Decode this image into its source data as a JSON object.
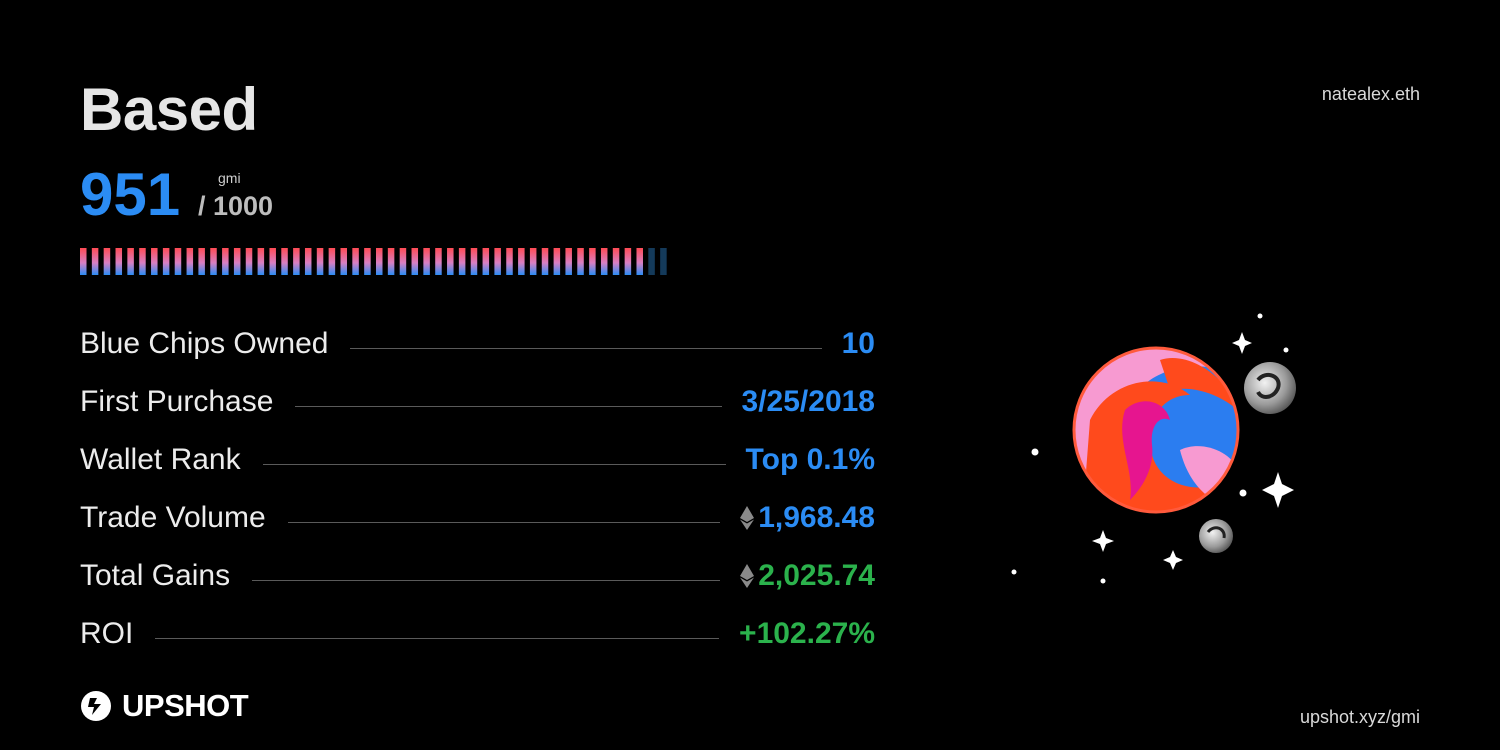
{
  "header": {
    "title": "Based",
    "username": "natealex.eth"
  },
  "score": {
    "value": "951",
    "unit": "gmi",
    "max_label": "/ 1000",
    "fraction": 0.951
  },
  "stats": [
    {
      "label": "Blue Chips Owned",
      "value": "10",
      "eth": false,
      "color": "#2b8cf4"
    },
    {
      "label": "First Purchase",
      "value": "3/25/2018",
      "eth": false,
      "color": "#2b8cf4"
    },
    {
      "label": "Wallet Rank",
      "value": "Top 0.1%",
      "eth": false,
      "color": "#2b8cf4"
    },
    {
      "label": "Trade Volume",
      "value": "1,968.48",
      "eth": true,
      "color": "#2b8cf4"
    },
    {
      "label": "Total Gains",
      "value": "2,025.74",
      "eth": true,
      "color": "#2bb24c"
    },
    {
      "label": "ROI",
      "value": "+102.27%",
      "eth": false,
      "color": "#2bb24c"
    }
  ],
  "footer": {
    "brand": "UPSHOT",
    "url": "upshot.xyz/gmi"
  },
  "icons": {
    "eth": "ethereum-icon",
    "logo": "upshot-logo-icon"
  },
  "colors": {
    "accent_blue": "#2b8cf4",
    "accent_green": "#2bb24c",
    "bar_start": "#f24d5b",
    "bar_end": "#2b8cf4",
    "bar_empty": "#143a5a"
  }
}
